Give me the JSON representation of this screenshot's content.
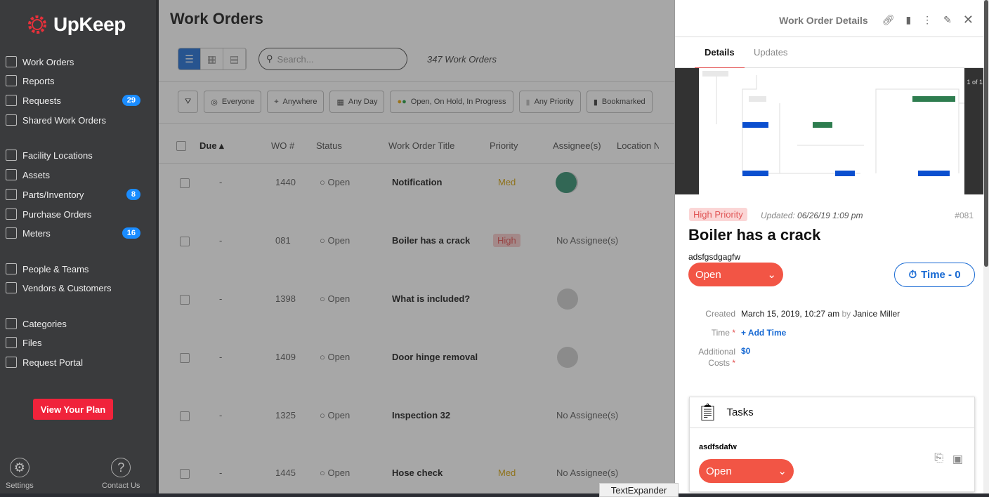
{
  "brand": {
    "name": "UpKeep",
    "accent": "#e8303a"
  },
  "sidebar": {
    "items": [
      {
        "label": "Work Orders",
        "icon": "clipboard-icon"
      },
      {
        "label": "Reports",
        "icon": "chart-icon"
      },
      {
        "label": "Requests",
        "icon": "inbox-icon",
        "badge": "29"
      },
      {
        "label": "Shared Work Orders",
        "icon": "share-icon"
      },
      {
        "label": "Facility Locations",
        "icon": "location-icon"
      },
      {
        "label": "Assets",
        "icon": "cube-icon"
      },
      {
        "label": "Parts/Inventory",
        "icon": "screw-icon",
        "badge": "8"
      },
      {
        "label": "Purchase Orders",
        "icon": "document-icon"
      },
      {
        "label": "Meters",
        "icon": "gauge-icon",
        "badge": "16"
      },
      {
        "label": "People & Teams",
        "icon": "people-icon"
      },
      {
        "label": "Vendors & Customers",
        "icon": "group-icon"
      },
      {
        "label": "Categories",
        "icon": "bookmark-icon"
      },
      {
        "label": "Files",
        "icon": "file-icon"
      },
      {
        "label": "Request Portal",
        "icon": "inbox-icon"
      }
    ],
    "plan_button": "View Your Plan",
    "settings": "Settings",
    "contact": "Contact Us"
  },
  "main": {
    "title": "Work Orders",
    "search_placeholder": "Search...",
    "count": "347 Work Orders",
    "filters": [
      "Everyone",
      "Anywhere",
      "Any Day",
      "Open, On Hold, In Progress",
      "Any Priority",
      "Bookmarked"
    ],
    "columns": [
      "Due",
      "WO #",
      "Status",
      "Work Order Title",
      "Priority",
      "Assignee(s)",
      "Location N"
    ],
    "rows": [
      {
        "due": "-",
        "wo": "1440",
        "status": "Open",
        "title": "Notification",
        "priority": "Med",
        "assignee": ""
      },
      {
        "due": "-",
        "wo": "081",
        "status": "Open",
        "title": "Boiler has a crack",
        "priority": "High",
        "assignee": "No Assignee(s)"
      },
      {
        "due": "-",
        "wo": "1398",
        "status": "Open",
        "title": "What is included?",
        "priority": "",
        "assignee": ""
      },
      {
        "due": "-",
        "wo": "1409",
        "status": "Open",
        "title": "Door hinge removal",
        "priority": "",
        "assignee": ""
      },
      {
        "due": "-",
        "wo": "1325",
        "status": "Open",
        "title": "Inspection 32",
        "priority": "",
        "assignee": "No Assignee(s)"
      },
      {
        "due": "-",
        "wo": "1445",
        "status": "Open",
        "title": "Hose check",
        "priority": "Med",
        "assignee": "No Assignee(s)"
      }
    ]
  },
  "panel": {
    "title": "Work Order Details",
    "tabs": [
      "Details",
      "Updates"
    ],
    "image_counter": "1 of 1",
    "priority": "High Priority",
    "updated_label": "Updated:",
    "updated": "06/26/19 1:09 pm",
    "number": "#081",
    "wo_title": "Boiler has a crack",
    "description": "adsfgsdgagfw",
    "status": "Open",
    "time_button": "Time - 0",
    "created_label": "Created",
    "created": "March 15, 2019, 10:27 am",
    "by": "by",
    "creator": "Janice Miller",
    "time_label": "Time",
    "add_time": "+ Add Time",
    "costs_label": "Additional Costs",
    "costs": "$0",
    "tasks": {
      "title": "Tasks",
      "task_name": "asdfsdafw",
      "task_status": "Open"
    }
  },
  "textexpander": "TextExpander"
}
